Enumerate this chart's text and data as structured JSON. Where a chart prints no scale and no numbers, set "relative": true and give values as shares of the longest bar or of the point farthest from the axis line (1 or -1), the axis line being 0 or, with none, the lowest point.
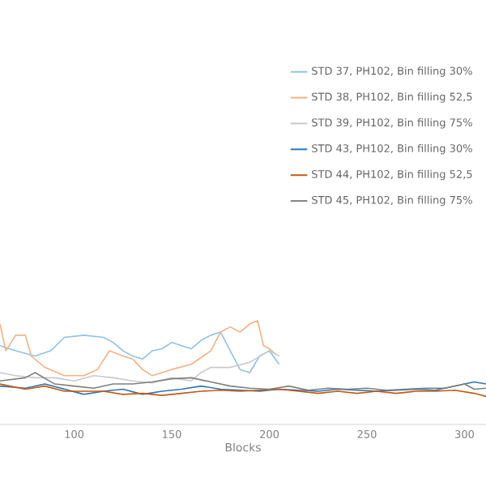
{
  "chart_data": {
    "type": "line",
    "xlabel": "Blocks",
    "relative": true,
    "xlim": [
      62,
      311
    ],
    "xticks": [
      100,
      150,
      200,
      250,
      300
    ],
    "legend": "top right",
    "grid": false,
    "marker": "none",
    "line_style": "solid",
    "series": [
      {
        "name": "STD 37, PH102, Bin filling 30%",
        "color": "#8ec3e6",
        "x": [
          62,
          70,
          80,
          88,
          95,
          105,
          115,
          120,
          125,
          130,
          135,
          140,
          145,
          150,
          155,
          160,
          165,
          170,
          175,
          180,
          185,
          190,
          195,
          200,
          205
        ],
        "values": [
          0.76,
          0.71,
          0.66,
          0.71,
          0.84,
          0.86,
          0.84,
          0.79,
          0.71,
          0.66,
          0.63,
          0.71,
          0.73,
          0.79,
          0.76,
          0.73,
          0.81,
          0.86,
          0.89,
          0.71,
          0.53,
          0.5,
          0.66,
          0.71,
          0.58
        ]
      },
      {
        "name": "STD 38, PH102, Bin filling 52,5",
        "color": "#f4b183",
        "x": [
          62,
          65,
          70,
          75,
          78,
          85,
          95,
          105,
          112,
          118,
          125,
          130,
          135,
          140,
          150,
          160,
          170,
          175,
          180,
          185,
          190,
          194,
          197,
          200,
          203
        ],
        "values": [
          0.97,
          0.71,
          0.86,
          0.86,
          0.66,
          0.55,
          0.47,
          0.47,
          0.53,
          0.71,
          0.66,
          0.63,
          0.53,
          0.47,
          0.53,
          0.58,
          0.71,
          0.89,
          0.94,
          0.89,
          0.97,
          1,
          0.76,
          0.73,
          0.68
        ]
      },
      {
        "name": "STD 39, PH102, Bin filling 75%",
        "color": "#c9c9c9",
        "x": [
          62,
          70,
          80,
          90,
          100,
          110,
          120,
          130,
          140,
          150,
          160,
          165,
          170,
          180,
          190,
          200,
          205
        ],
        "values": [
          0.5,
          0.47,
          0.45,
          0.45,
          0.42,
          0.47,
          0.45,
          0.42,
          0.4,
          0.45,
          0.42,
          0.5,
          0.55,
          0.55,
          0.6,
          0.71,
          0.66
        ]
      },
      {
        "name": "STD 43, PH102, Bin filling 30%",
        "color": "#2e75b6",
        "x": [
          62,
          75,
          85,
          95,
          105,
          115,
          125,
          135,
          145,
          155,
          165,
          175,
          185,
          195,
          205,
          215,
          225,
          235,
          245,
          255,
          265,
          275,
          285,
          295,
          305,
          311
        ],
        "values": [
          0.37,
          0.35,
          0.39,
          0.34,
          0.29,
          0.32,
          0.34,
          0.29,
          0.32,
          0.34,
          0.37,
          0.34,
          0.33,
          0.32,
          0.34,
          0.33,
          0.32,
          0.34,
          0.33,
          0.32,
          0.33,
          0.34,
          0.33,
          0.37,
          0.41,
          0.39
        ]
      },
      {
        "name": "STD 44, PH102, Bin filling 52,5",
        "color": "#c55a11",
        "x": [
          62,
          75,
          85,
          95,
          105,
          115,
          125,
          135,
          145,
          155,
          165,
          175,
          185,
          195,
          205,
          215,
          225,
          235,
          245,
          255,
          265,
          275,
          285,
          295,
          305,
          311
        ],
        "values": [
          0.39,
          0.34,
          0.37,
          0.32,
          0.32,
          0.32,
          0.29,
          0.3,
          0.28,
          0.3,
          0.32,
          0.33,
          0.32,
          0.33,
          0.34,
          0.32,
          0.3,
          0.32,
          0.3,
          0.32,
          0.3,
          0.32,
          0.32,
          0.33,
          0.3,
          0.27
        ]
      },
      {
        "name": "STD 45, PH102, Bin filling 75%",
        "color": "#7f7f7f",
        "x": [
          62,
          75,
          80,
          90,
          100,
          110,
          120,
          130,
          140,
          150,
          160,
          170,
          180,
          190,
          200,
          210,
          220,
          230,
          240,
          250,
          260,
          270,
          280,
          290,
          300,
          305,
          311
        ],
        "values": [
          0.42,
          0.45,
          0.5,
          0.39,
          0.37,
          0.35,
          0.39,
          0.39,
          0.41,
          0.44,
          0.45,
          0.41,
          0.37,
          0.35,
          0.34,
          0.37,
          0.33,
          0.35,
          0.34,
          0.35,
          0.33,
          0.34,
          0.35,
          0.35,
          0.39,
          0.34,
          0.35
        ]
      }
    ]
  }
}
